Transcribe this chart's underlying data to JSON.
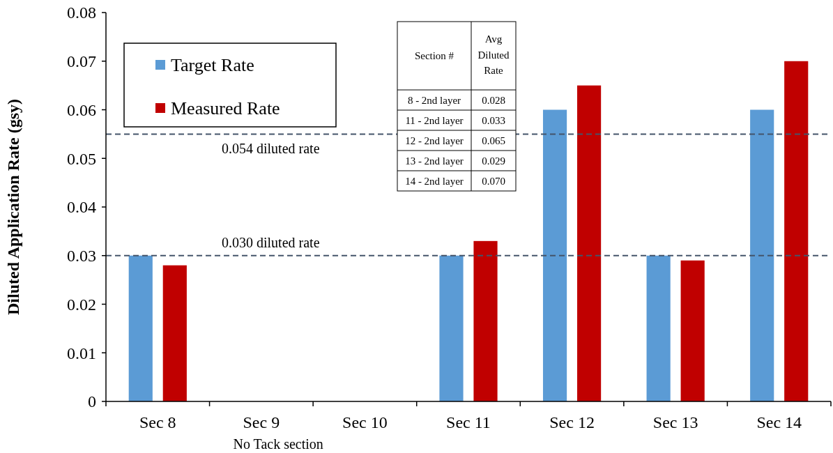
{
  "chart_data": {
    "type": "bar",
    "ylabel": "Diluted Application Rate (gsy)",
    "categories": [
      "Sec 8",
      "Sec 9",
      "Sec 10",
      "Sec 11",
      "Sec 12",
      "Sec 13",
      "Sec 14"
    ],
    "series": [
      {
        "name": "Target Rate",
        "color": "#5b9bd5",
        "values": [
          0.03,
          null,
          null,
          0.03,
          0.06,
          0.03,
          0.06
        ]
      },
      {
        "name": "Measured Rate",
        "color": "#c00000",
        "values": [
          0.028,
          null,
          null,
          0.033,
          0.065,
          0.029,
          0.07
        ]
      }
    ],
    "ylim": [
      0,
      0.08
    ],
    "yticks": [
      {
        "value": 0,
        "label": "0"
      },
      0.01,
      0.02,
      0.03,
      0.04,
      0.05,
      0.06,
      0.07,
      0.08
    ],
    "ref_lines": [
      {
        "axis": "y",
        "value": 0.055,
        "label": "0.054 diluted rate",
        "color": "#44546a",
        "line_style": "dashed"
      },
      {
        "axis": "y",
        "value": 0.03,
        "label": "0.030 diluted rate",
        "color": "#44546a",
        "line_style": "dashed"
      }
    ],
    "legend": "top left",
    "grid": false,
    "annotations": [
      "No Tack section",
      "Section #",
      "Avg Diluted Rate",
      "8 - 2nd layer",
      "0.028",
      "11 - 2nd layer",
      "0.033",
      "12 - 2nd layer",
      "0.065",
      "13 - 2nd layer",
      "0.029",
      "14 - 2nd layer",
      "0.070"
    ]
  }
}
